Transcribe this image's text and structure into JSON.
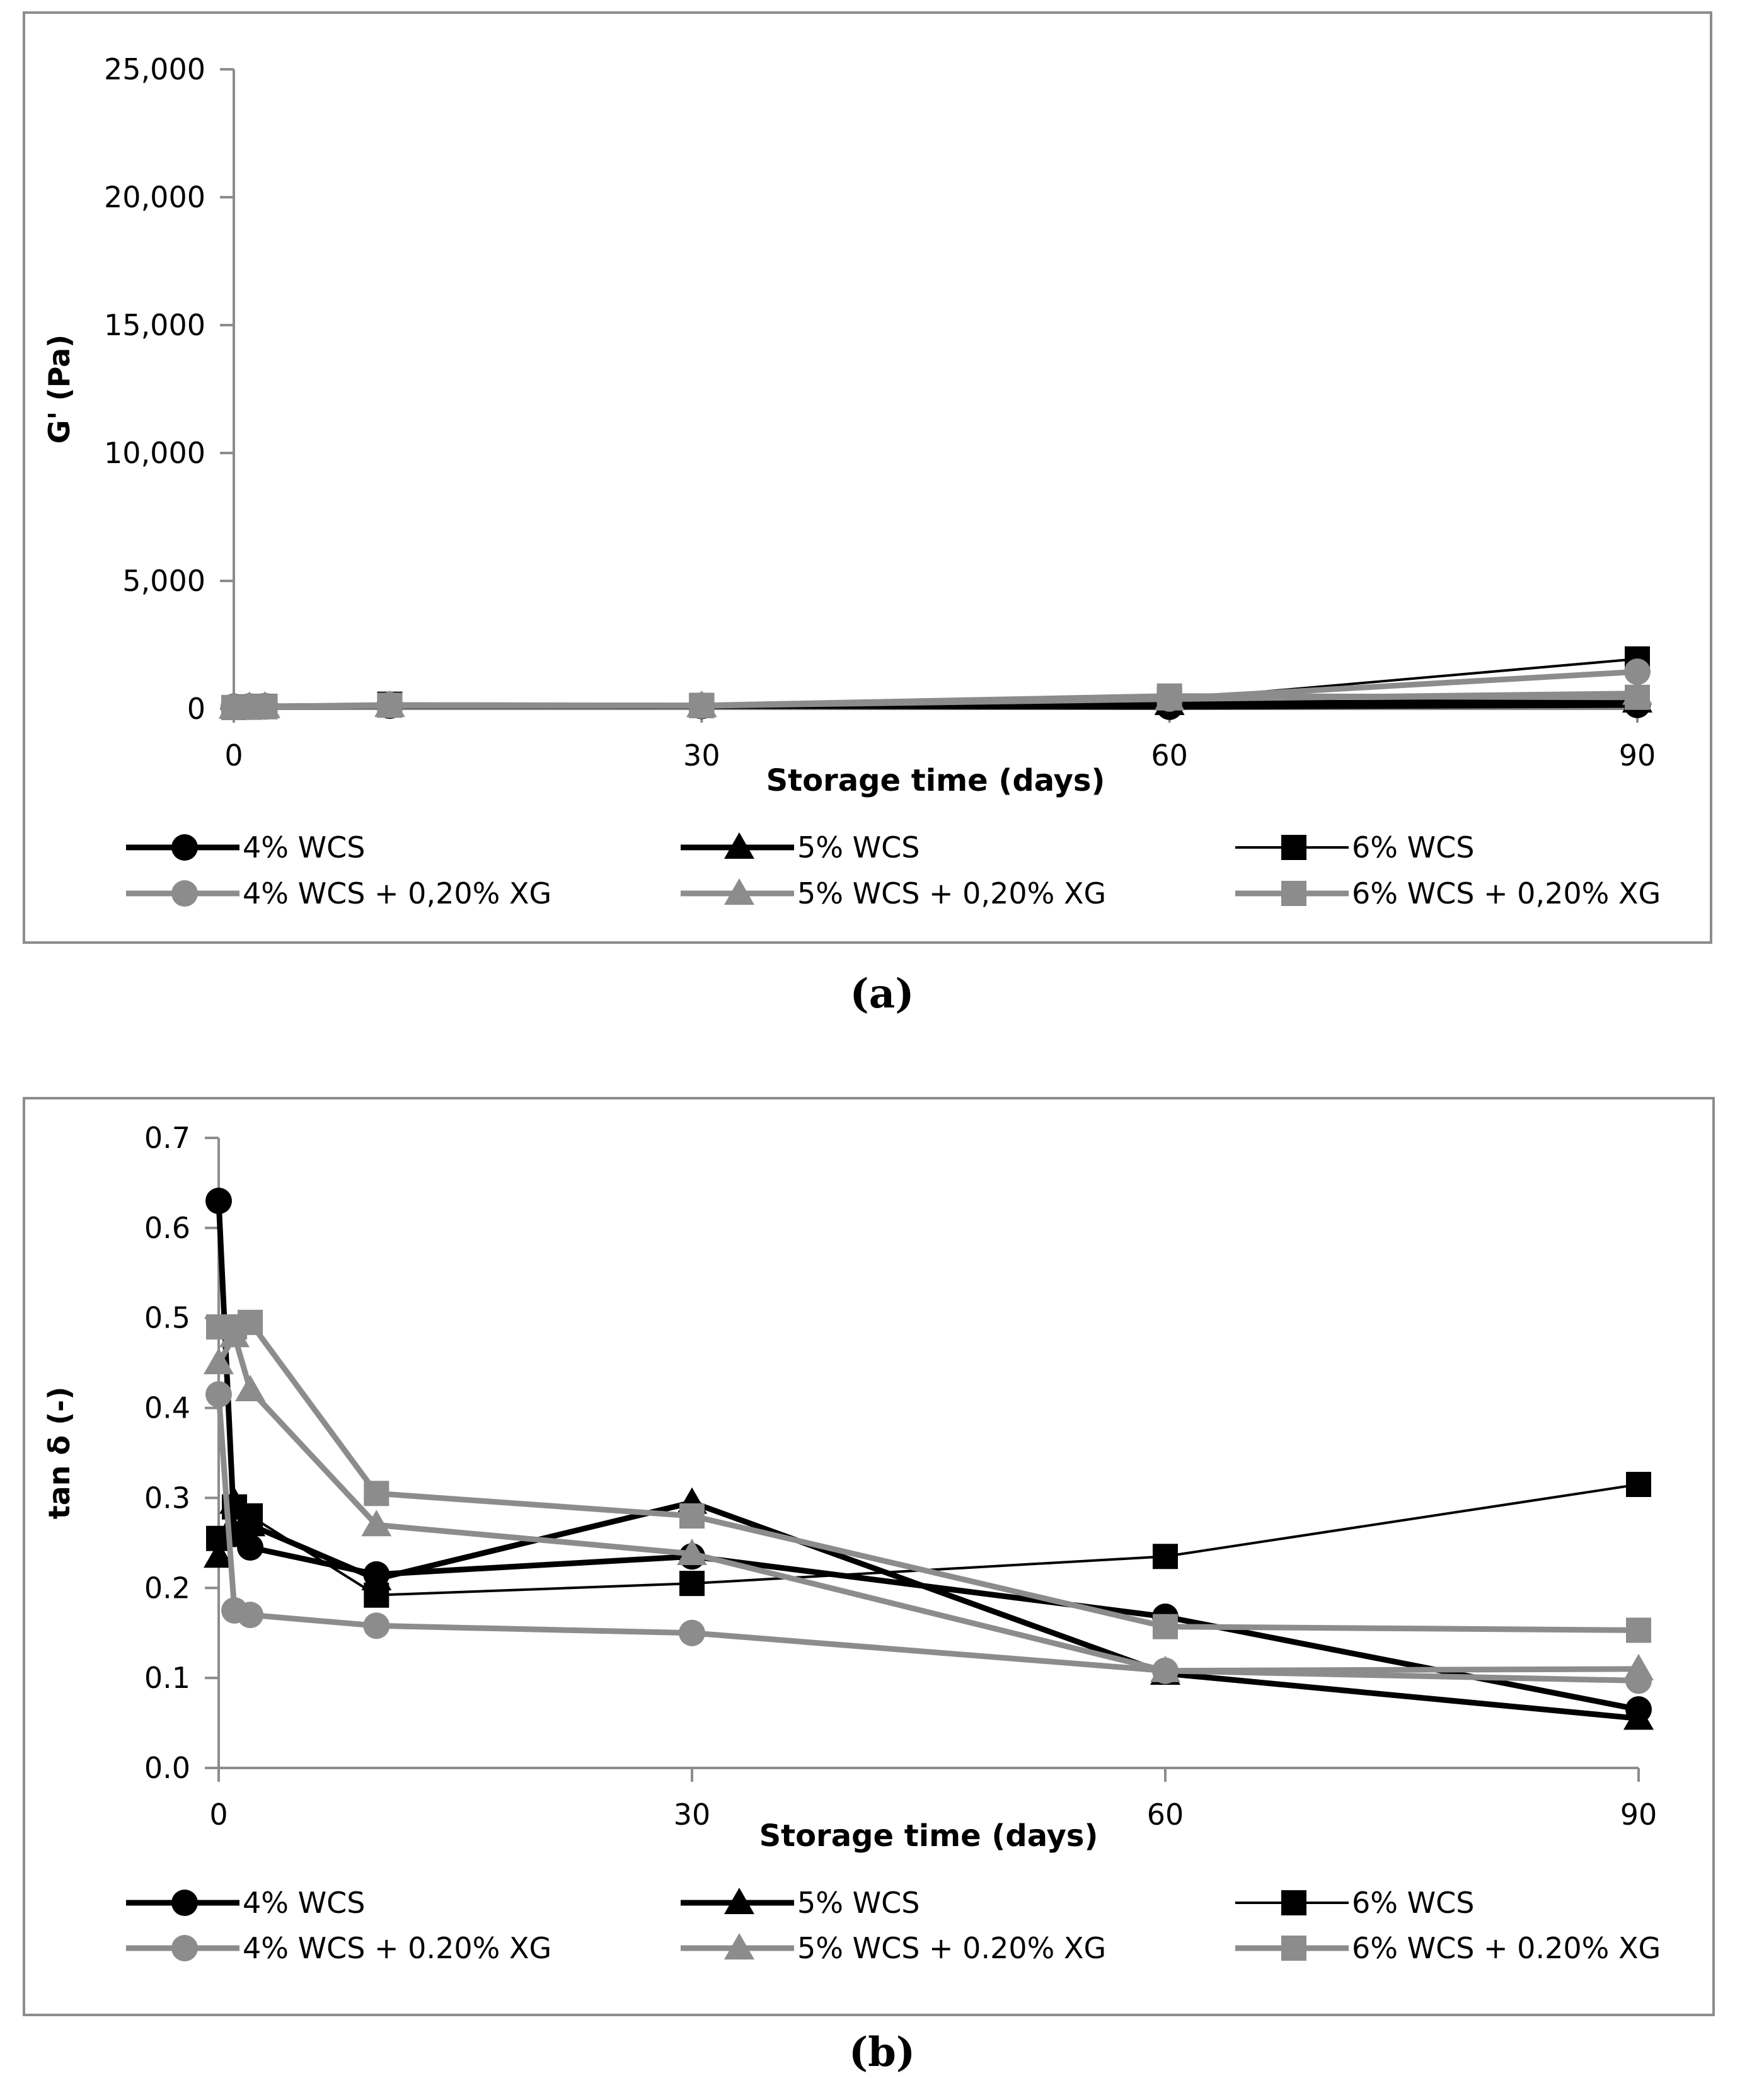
{
  "chart_data": [
    {
      "type": "line",
      "title": "",
      "xlabel": "Storage time (days)",
      "ylabel": "G' (Pa)",
      "ylim": [
        0,
        25000
      ],
      "xlim": [
        0,
        90
      ],
      "x_ticks": [
        "0",
        "30",
        "60",
        "90"
      ],
      "y_ticks": [
        "0",
        "5,000",
        "10,000",
        "15,000",
        "20,000",
        "25,000"
      ],
      "grid": false,
      "legend_position": "bottom",
      "x": [
        0,
        1,
        2,
        10,
        30,
        60,
        90
      ],
      "series": [
        {
          "name": "4% WCS",
          "values": [
            80,
            90,
            100,
            120,
            110,
            80,
            150
          ]
        },
        {
          "name": "5% WCS",
          "values": [
            60,
            80,
            90,
            130,
            120,
            200,
            300
          ]
        },
        {
          "name": "6% WCS",
          "values": [
            50,
            70,
            90,
            180,
            130,
            350,
            1950
          ]
        },
        {
          "name": "4% WCS + 0,20% XG",
          "values": [
            70,
            80,
            90,
            150,
            130,
            400,
            1450
          ]
        },
        {
          "name": "5% WCS + 0,20% XG",
          "values": [
            60,
            70,
            80,
            130,
            120,
            380,
            600
          ]
        },
        {
          "name": "6% WCS + 0,20% XG",
          "values": [
            50,
            60,
            80,
            140,
            130,
            500,
            450
          ]
        }
      ],
      "caption": "(a)"
    },
    {
      "type": "line",
      "title": "",
      "xlabel": "Storage time (days)",
      "ylabel": "tan δ (-)",
      "ylim": [
        0,
        0.7
      ],
      "xlim": [
        0,
        90
      ],
      "x_ticks": [
        "0",
        "30",
        "60",
        "90"
      ],
      "y_ticks": [
        "0.0",
        "0.1",
        "0.2",
        "0.3",
        "0.4",
        "0.5",
        "0.6",
        "0.7"
      ],
      "grid": false,
      "legend_position": "bottom",
      "x": [
        0,
        1,
        2,
        10,
        30,
        60,
        90
      ],
      "series": [
        {
          "name": "4% WCS",
          "values": [
            0.63,
            0.26,
            0.245,
            0.215,
            0.235,
            0.168,
            0.065
          ]
        },
        {
          "name": "5% WCS",
          "values": [
            0.235,
            0.295,
            0.27,
            0.21,
            0.295,
            0.105,
            0.055
          ]
        },
        {
          "name": "6% WCS",
          "values": [
            0.255,
            0.29,
            0.28,
            0.192,
            0.205,
            0.235,
            0.315
          ]
        },
        {
          "name": "4% WCS + 0.20% XG",
          "values": [
            0.415,
            0.175,
            0.17,
            0.158,
            0.15,
            0.108,
            0.097
          ]
        },
        {
          "name": "5% WCS + 0.20% XG",
          "values": [
            0.45,
            0.48,
            0.42,
            0.27,
            0.238,
            0.108,
            0.11
          ]
        },
        {
          "name": "6% WCS + 0.20% XG",
          "values": [
            0.49,
            0.49,
            0.495,
            0.305,
            0.28,
            0.157,
            0.153
          ]
        }
      ],
      "caption": "(b)"
    }
  ],
  "styles": {
    "series_colors": [
      "#000000",
      "#000000",
      "#000000",
      "#8c8c8c",
      "#8c8c8c",
      "#8c8c8c"
    ],
    "series_markers": [
      "circle",
      "triangle",
      "square",
      "circle",
      "triangle",
      "square"
    ],
    "axis_color": "#8c8c8c",
    "frame_color": "#8c8c8c"
  }
}
